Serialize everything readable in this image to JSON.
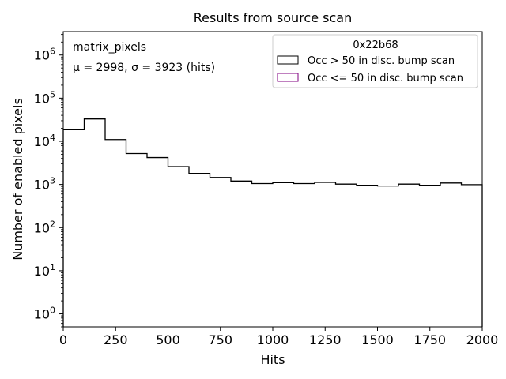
{
  "chart_data": {
    "type": "histogram",
    "title": "Results from source scan",
    "xlabel": "Hits",
    "ylabel": "Number of enabled pixels",
    "xlim": [
      0,
      2000
    ],
    "ylim": [
      0.5,
      3500000
    ],
    "yscale": "log",
    "grid": false,
    "x_ticks": [
      "0",
      "250",
      "500",
      "750",
      "1000",
      "1250",
      "1500",
      "1750",
      "2000"
    ],
    "x_tick_values": [
      0,
      250,
      500,
      750,
      1000,
      1250,
      1500,
      1750,
      2000
    ],
    "y_tick_bases": [
      "10",
      "10",
      "10",
      "10",
      "10",
      "10",
      "10"
    ],
    "y_tick_exponents": [
      "0",
      "1",
      "2",
      "3",
      "4",
      "5",
      "6"
    ],
    "y_tick_values": [
      1,
      10,
      100,
      1000,
      10000,
      100000,
      1000000
    ],
    "bin_edges": [
      0,
      100,
      200,
      300,
      400,
      500,
      600,
      700,
      800,
      900,
      1000,
      1100,
      1200,
      1300,
      1400,
      1500,
      1600,
      1700,
      1800,
      1900,
      2000
    ],
    "series": [
      {
        "name": "Occ > 50 in disc. bump scan",
        "color": "#000000",
        "values": [
          18500,
          33000,
          11000,
          5200,
          4200,
          2600,
          1800,
          1450,
          1200,
          1050,
          1100,
          1050,
          1120,
          1020,
          960,
          920,
          1020,
          960,
          1080,
          990
        ]
      },
      {
        "name": "Occ <= 50 in disc. bump scan",
        "color": "#800080",
        "values": []
      }
    ],
    "annotations": {
      "label": "matrix_pixels",
      "stats": "μ = 2998, σ = 3923 (hits)"
    },
    "legend": {
      "title": "0x22b68",
      "placement": "top-right"
    }
  }
}
